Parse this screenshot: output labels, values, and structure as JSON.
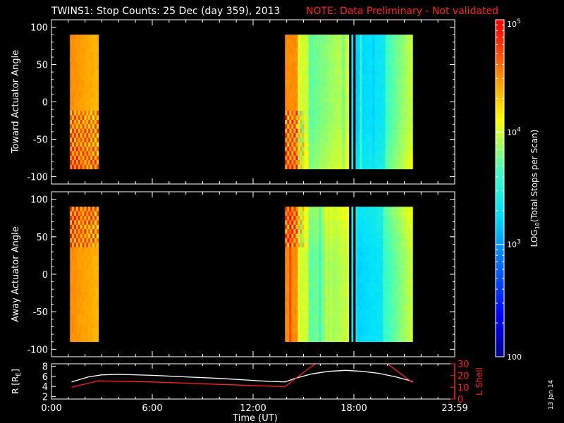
{
  "title": {
    "main": "TWINS1: Stop Counts: 25 Dec (day 359), 2013",
    "note": "NOTE: Data Preliminary - Not validated"
  },
  "colors": {
    "background": "#000000",
    "axes": "#ffffff",
    "note": "#ff2020",
    "r_line": "#ffffff",
    "l_line": "#ff2020"
  },
  "side_stamp": "13 Jan 14",
  "chart_data": [
    {
      "type": "heatmap",
      "name": "toward",
      "ylabel": "Toward Actuator Angle",
      "xlim": [
        0,
        24
      ],
      "ylim": [
        -110,
        110
      ],
      "yticks": [
        100,
        50,
        0,
        -50,
        -100
      ],
      "angle_range": [
        -90,
        90
      ],
      "log10_range": [
        2,
        5
      ],
      "segments": [
        {
          "t_start": 1.1,
          "t_end": 2.8,
          "base_log10": 4.45
        },
        {
          "t_start": 13.9,
          "t_end": 17.7,
          "base_log10": 3.7
        },
        {
          "t_start": 17.85,
          "t_end": 17.95,
          "base_log10": 3.3
        },
        {
          "t_start": 18.1,
          "t_end": 21.5,
          "base_log10": 3.35
        }
      ]
    },
    {
      "type": "heatmap",
      "name": "away",
      "ylabel": "Away Actuator Angle",
      "xlim": [
        0,
        24
      ],
      "ylim": [
        -110,
        110
      ],
      "yticks": [
        100,
        50,
        0,
        -50,
        -100
      ],
      "angle_range": [
        -90,
        90
      ],
      "log10_range": [
        2,
        5
      ],
      "segments": [
        {
          "t_start": 1.1,
          "t_end": 2.8,
          "base_log10": 4.45
        },
        {
          "t_start": 13.9,
          "t_end": 17.7,
          "base_log10": 3.7
        },
        {
          "t_start": 17.85,
          "t_end": 17.95,
          "base_log10": 3.3
        },
        {
          "t_start": 18.1,
          "t_end": 21.5,
          "base_log10": 3.4
        }
      ]
    },
    {
      "type": "line",
      "name": "orbit",
      "xlabel": "Time (UT)",
      "ylabel_left": "R [RE]",
      "ylabel_right": "L Shell",
      "xlim": [
        0,
        24
      ],
      "ylim_left": [
        1.5,
        8.5
      ],
      "ylim_right": [
        0,
        30
      ],
      "yticks_left": [
        8,
        6,
        4,
        2
      ],
      "yticks_right": [
        30,
        20,
        10,
        0
      ],
      "xticks": [
        0,
        6,
        12,
        18,
        24
      ],
      "xtick_labels": [
        "0:00",
        "6:00",
        "12:00",
        "18:00",
        "23:59"
      ],
      "series": [
        {
          "axis": "left",
          "x": [
            1.2,
            2.2,
            3.0,
            4.0,
            6.0,
            8.0,
            10.0,
            12.0,
            13.0,
            13.9,
            14.5,
            15.5,
            16.5,
            17.5,
            18.5,
            19.5,
            20.5,
            21.5
          ],
          "y": [
            4.9,
            5.9,
            6.3,
            6.4,
            6.2,
            5.9,
            5.6,
            5.2,
            5.0,
            4.9,
            5.6,
            6.5,
            7.0,
            7.2,
            7.0,
            6.6,
            5.9,
            5.0
          ]
        },
        {
          "axis": "right",
          "x": [
            1.2,
            2.8,
            6.0,
            10.0,
            13.9,
            15.4,
            16.0,
            19.8,
            21.5
          ],
          "y": [
            10,
            15.5,
            14.5,
            12.5,
            10.5,
            27,
            32,
            32,
            14
          ]
        }
      ]
    }
  ],
  "colorbar": {
    "label": "LOG10(Total Stops per Scan)",
    "ticks": [
      {
        "log10": 5,
        "label": "10^5"
      },
      {
        "log10": 4,
        "label": "10^4"
      },
      {
        "log10": 3,
        "label": "10^3"
      },
      {
        "log10": 2,
        "label": "100"
      }
    ]
  }
}
